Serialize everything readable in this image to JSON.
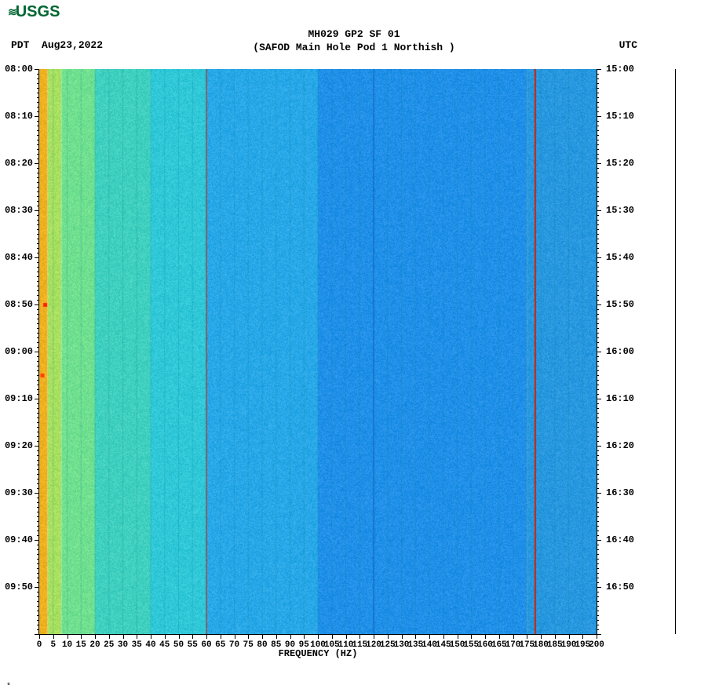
{
  "logo": {
    "prefix": "≋",
    "text": "USGS",
    "color": "#006633"
  },
  "header": {
    "title": "MH029 GP2 SF 01",
    "subtitle": "(SAFOD Main Hole Pod 1 Northish )"
  },
  "tz_left": {
    "label": "PDT",
    "date": "Aug23,2022"
  },
  "tz_right": {
    "label": "UTC"
  },
  "spectrogram": {
    "type": "heatmap",
    "x_axis": {
      "label": "FREQUENCY (HZ)",
      "min": 0,
      "max": 200,
      "tick_step": 5,
      "fontsize": 11
    },
    "y_axis_left": {
      "min_minutes": 0,
      "max_minutes": 120,
      "major_labels": [
        "08:00",
        "08:10",
        "08:20",
        "08:30",
        "08:40",
        "08:50",
        "09:00",
        "09:10",
        "09:20",
        "09:30",
        "09:40",
        "09:50"
      ],
      "label_positions_min": [
        0,
        10,
        20,
        30,
        40,
        50,
        60,
        70,
        80,
        90,
        100,
        110
      ],
      "minor_step_min": 1
    },
    "y_axis_right": {
      "major_labels": [
        "15:00",
        "15:10",
        "15:20",
        "15:30",
        "15:40",
        "15:50",
        "16:00",
        "16:10",
        "16:20",
        "16:30",
        "16:40",
        "16:50"
      ],
      "label_positions_min": [
        0,
        10,
        20,
        30,
        40,
        50,
        60,
        70,
        80,
        90,
        100,
        110
      ],
      "minor_step_min": 1
    },
    "background_color": "#ffffff",
    "color_bands": [
      {
        "freq_start": 0,
        "freq_end": 3,
        "color": "#f0b020"
      },
      {
        "freq_start": 3,
        "freq_end": 8,
        "color": "#a8e060"
      },
      {
        "freq_start": 8,
        "freq_end": 20,
        "color": "#70e090"
      },
      {
        "freq_start": 20,
        "freq_end": 40,
        "color": "#40d0c0"
      },
      {
        "freq_start": 40,
        "freq_end": 60,
        "color": "#30c8d8"
      },
      {
        "freq_start": 60,
        "freq_end": 100,
        "color": "#28a8e8"
      },
      {
        "freq_start": 100,
        "freq_end": 175,
        "color": "#2090e8"
      },
      {
        "freq_start": 175,
        "freq_end": 200,
        "color": "#2898e0"
      }
    ],
    "spectral_lines": [
      {
        "freq": 60,
        "color": "#c02000",
        "width": 1
      },
      {
        "freq": 120,
        "color": "#1060c0",
        "width": 1
      },
      {
        "freq": 178,
        "color": "#d02000",
        "width": 2
      }
    ],
    "grid_lines_freq_step": 5,
    "grid_line_color": "#108090",
    "noise_seed_note": "mottled cyan/blue noise texture across full area",
    "hot_spots": [
      {
        "time_min": 50,
        "freq": 2,
        "color": "#ff2000"
      },
      {
        "time_min": 65,
        "freq": 1,
        "color": "#ff4000"
      }
    ]
  },
  "xlabel": "FREQUENCY (HZ)",
  "footer": "*"
}
